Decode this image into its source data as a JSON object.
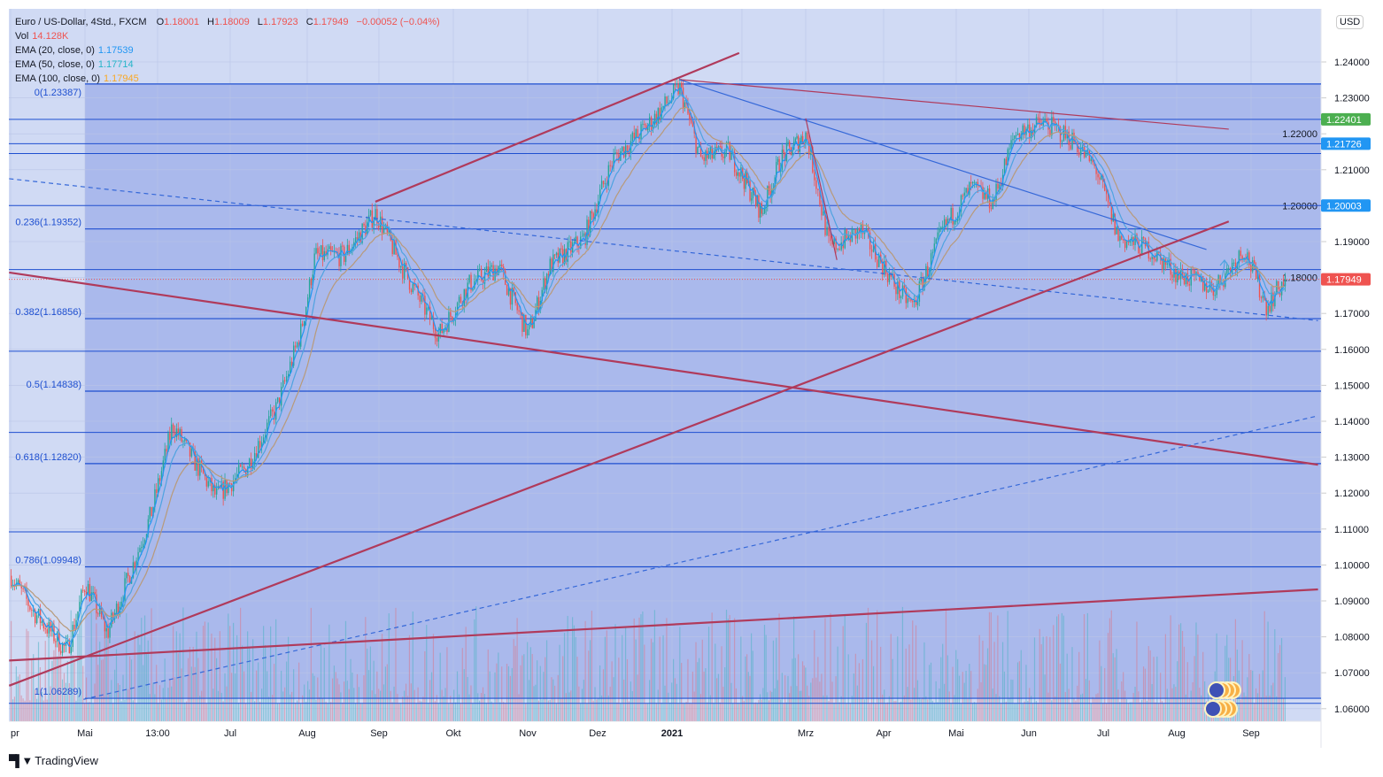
{
  "legend": {
    "symbol": "Euro / US-Dollar, 4Std., FXCM",
    "open_label": "O",
    "open": "1.18001",
    "high_label": "H",
    "high": "1.18009",
    "low_label": "L",
    "low": "1.17923",
    "close_label": "C",
    "close": "1.17949",
    "change": "−0.00052 (−0.04%)",
    "vol_label": "Vol",
    "vol": "14.128K",
    "ema20_label": "EMA (20, close, 0)",
    "ema20": "1.17539",
    "ema50_label": "EMA (50, close, 0)",
    "ema50": "1.17714",
    "ema100_label": "EMA (100, close, 0)",
    "ema100": "1.17945"
  },
  "currency_badge": "USD",
  "branding": "TradingView",
  "colors": {
    "up": "#26a69a",
    "down": "#ef5350",
    "ema20": "#2196f3",
    "ema50": "#4fa3e0",
    "ema100": "#b89a7a",
    "fib": "#1e4fd0",
    "trend_red": "#b03a5b",
    "bg_outer": "#d0daf4",
    "bg_fib": "#aab9ec"
  },
  "chart_data": {
    "type": "candlestick",
    "title": "Euro / US-Dollar, 4Std., FXCM",
    "x_ticks": [
      "pr",
      "Mai",
      "13:00",
      "Jul",
      "Aug",
      "Sep",
      "Okt",
      "Nov",
      "Dez",
      "2021",
      "",
      "Mrz",
      "Apr",
      "Mai",
      "Jun",
      "Jul",
      "Aug",
      "Sep"
    ],
    "y_ticks": [
      "1.24000",
      "1.23000",
      "1.22000",
      "1.21000",
      "1.20000",
      "1.19000",
      "1.18000",
      "1.17000",
      "1.16000",
      "1.15000",
      "1.14000",
      "1.13000",
      "1.12000",
      "1.11000",
      "1.10000",
      "1.09000",
      "1.08000",
      "1.07000",
      "1.06000"
    ],
    "ylim": [
      1.0555,
      1.2548
    ],
    "x_unit": "months since April 2020",
    "price_path": [
      [
        0,
        1.097
      ],
      [
        0.3,
        1.087
      ],
      [
        0.75,
        1.076
      ],
      [
        1.0,
        1.095
      ],
      [
        1.3,
        1.081
      ],
      [
        1.6,
        1.097
      ],
      [
        1.9,
        1.114
      ],
      [
        2.2,
        1.139
      ],
      [
        2.4,
        1.132
      ],
      [
        2.8,
        1.119
      ],
      [
        3.2,
        1.127
      ],
      [
        3.6,
        1.144
      ],
      [
        3.9,
        1.164
      ],
      [
        4.1,
        1.186
      ],
      [
        4.5,
        1.186
      ],
      [
        4.95,
        1.198
      ],
      [
        5.3,
        1.183
      ],
      [
        5.8,
        1.164
      ],
      [
        6.2,
        1.178
      ],
      [
        6.6,
        1.183
      ],
      [
        7.0,
        1.164
      ],
      [
        7.3,
        1.183
      ],
      [
        7.8,
        1.191
      ],
      [
        8.2,
        1.213
      ],
      [
        8.7,
        1.223
      ],
      [
        9.1,
        1.233
      ],
      [
        9.4,
        1.213
      ],
      [
        9.8,
        1.215
      ],
      [
        10.3,
        1.198
      ],
      [
        10.6,
        1.213
      ],
      [
        11.0,
        1.22
      ],
      [
        11.3,
        1.188
      ],
      [
        11.7,
        1.193
      ],
      [
        12.2,
        1.176
      ],
      [
        12.4,
        1.172
      ],
      [
        12.8,
        1.193
      ],
      [
        13.2,
        1.205
      ],
      [
        13.5,
        1.201
      ],
      [
        13.8,
        1.22
      ],
      [
        14.2,
        1.223
      ],
      [
        14.6,
        1.218
      ],
      [
        14.9,
        1.21
      ],
      [
        15.2,
        1.191
      ],
      [
        15.6,
        1.188
      ],
      [
        16.0,
        1.181
      ],
      [
        16.5,
        1.177
      ],
      [
        16.9,
        1.188
      ],
      [
        17.2,
        1.172
      ],
      [
        17.45,
        1.1795
      ]
    ],
    "price_labels": [
      {
        "value": "1.22401",
        "color": "#4caf50"
      },
      {
        "value": "1.21726",
        "color": "#2196f3"
      },
      {
        "value": "1.20003",
        "color": "#2196f3"
      },
      {
        "value": "1.17949",
        "color": "#ef5350"
      }
    ],
    "fib_levels": [
      {
        "label": "0(1.23387)",
        "price": 1.23387
      },
      {
        "label": "0.236(1.19352)",
        "price": 1.19352
      },
      {
        "label": "0.382(1.16856)",
        "price": 1.16856
      },
      {
        "label": "0.5(1.14838)",
        "price": 1.14838
      },
      {
        "label": "0.618(1.12820)",
        "price": 1.1282
      },
      {
        "label": "0.786(1.09948)",
        "price": 1.09948
      },
      {
        "label": "1(1.06289)",
        "price": 1.06289
      }
    ],
    "horizontal_lines": [
      1.22401,
      1.21726,
      1.2145,
      1.20003,
      1.1822,
      1.1595,
      1.1369,
      1.1092,
      1.0615
    ],
    "trend_lines": [
      {
        "style": "red",
        "from": [
          4.95,
          1.2011
        ],
        "to": [
          9.96,
          1.2425
        ]
      },
      {
        "style": "red-thin",
        "from": [
          9.1,
          1.2351
        ],
        "to": [
          16.7,
          1.2213
        ]
      },
      {
        "style": "blue",
        "from": [
          9.1,
          1.2351
        ],
        "to": [
          16.4,
          1.1878
        ]
      },
      {
        "style": "red-thin",
        "from": [
          11.0,
          1.2243
        ],
        "to": [
          11.4,
          1.1849
        ]
      },
      {
        "style": "blue-dashed",
        "from": [
          -0.02,
          1.2075
        ],
        "to": [
          17.9,
          1.168
        ]
      },
      {
        "style": "red",
        "from": [
          -0.02,
          1.1814
        ],
        "to": [
          17.9,
          1.1279
        ]
      },
      {
        "style": "red",
        "from": [
          -0.02,
          1.0664
        ],
        "to": [
          16.7,
          1.1956
        ]
      },
      {
        "style": "blue-dashed",
        "from": [
          0.98,
          1.0626
        ],
        "to": [
          17.9,
          1.1415
        ]
      },
      {
        "style": "red",
        "from": [
          -0.02,
          1.0734
        ],
        "to": [
          17.9,
          1.0932
        ]
      }
    ]
  }
}
